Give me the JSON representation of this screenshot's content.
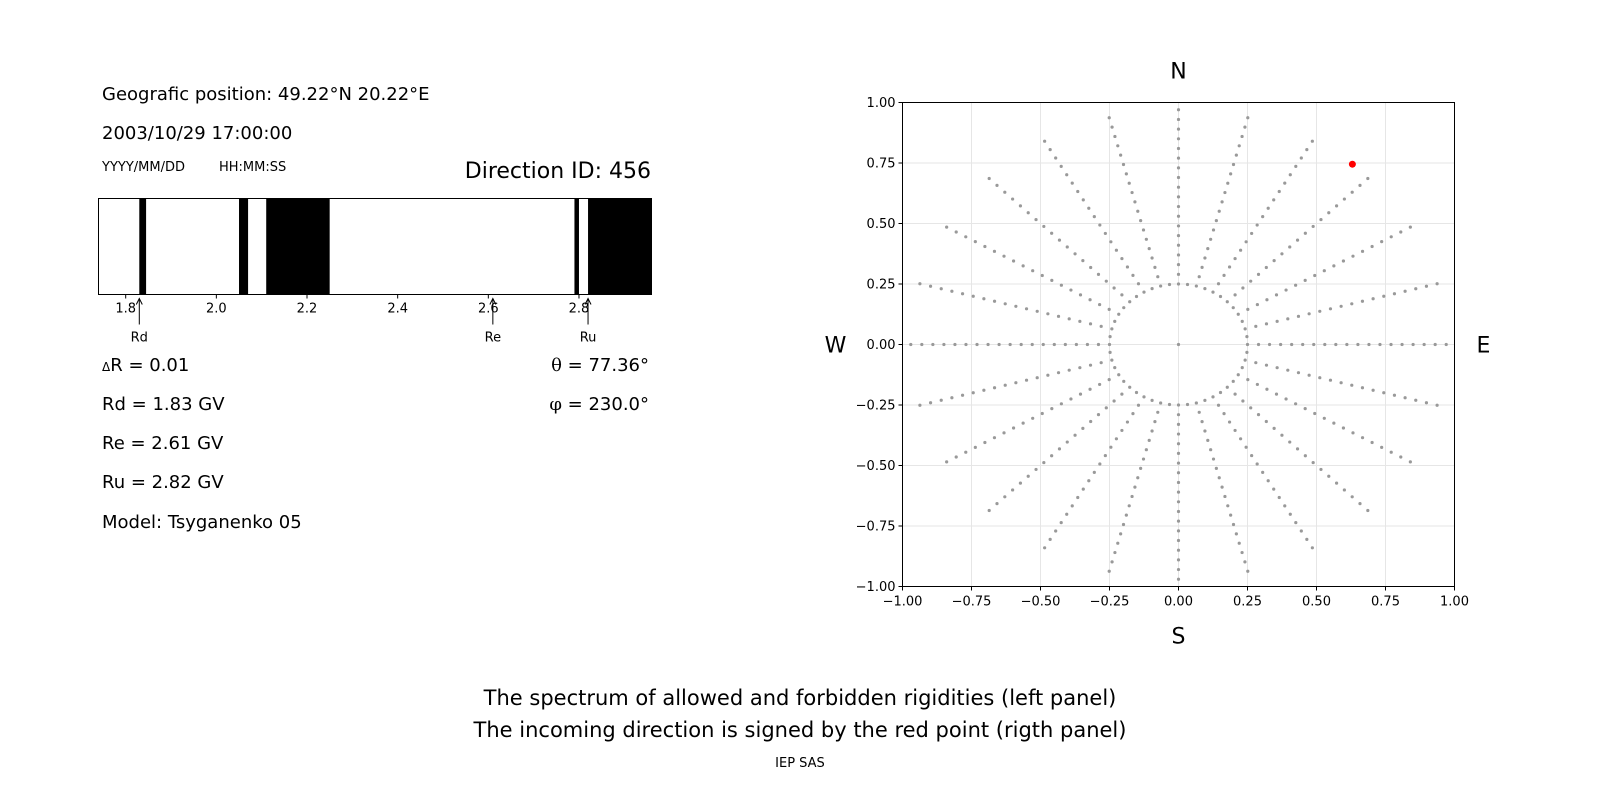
{
  "info": {
    "geo_position": "Geografic position: 49.22°N 20.22°E",
    "datetime": "2003/10/29 17:00:00",
    "date_format": "YYYY/MM/DD",
    "time_format": "HH:MM:SS",
    "direction_id": "Direction ID: 456"
  },
  "values": {
    "delta_r_symbol": "Δ",
    "delta_r": "R = 0.01",
    "rd": "Rd = 1.83 GV",
    "re": "Re = 2.61 GV",
    "ru": "Ru = 2.82 GV",
    "model": "Model: Tsyganenko 05",
    "theta_symbol": "θ",
    "theta": " = 77.36°",
    "phi_symbol": "φ",
    "phi": " = 230.0°"
  },
  "captions": {
    "line1": "The spectrum of allowed and forbidden rigidities (left panel)",
    "line2": "The incoming direction is signed by the red point (rigth panel)",
    "credit": "IEP SAS"
  },
  "chart_data": [
    {
      "type": "bar",
      "description_key": "rigidity_spectrum",
      "xlim": [
        1.74,
        2.96
      ],
      "xticks": [
        1.8,
        2.0,
        2.2,
        2.4,
        2.6,
        2.8
      ],
      "xtick_labels": [
        "1.8",
        "2.0",
        "2.2",
        "2.4",
        "2.6",
        "2.8"
      ],
      "forbidden_bands": [
        [
          1.83,
          1.845
        ],
        [
          2.05,
          2.07
        ],
        [
          2.11,
          2.25
        ],
        [
          2.79,
          2.8
        ],
        [
          2.82,
          2.96
        ]
      ],
      "markers": [
        {
          "label": "Rd",
          "value": 1.83
        },
        {
          "label": "Re",
          "value": 2.61
        },
        {
          "label": "Ru",
          "value": 2.82
        }
      ],
      "colors": {
        "forbidden": "#000000",
        "allowed": "#ffffff"
      }
    },
    {
      "type": "scatter",
      "description_key": "asymptotic_directions",
      "xlim": [
        -1.0,
        1.0
      ],
      "ylim": [
        -1.0,
        1.0
      ],
      "xticks": [
        -1.0,
        -0.75,
        -0.5,
        -0.25,
        0.0,
        0.25,
        0.5,
        0.75,
        1.0
      ],
      "yticks": [
        -1.0,
        -0.75,
        -0.5,
        -0.25,
        0.0,
        0.25,
        0.5,
        0.75,
        1.0
      ],
      "xtick_labels": [
        "−1.00",
        "−0.75",
        "−0.50",
        "−0.25",
        "0.00",
        "0.25",
        "0.50",
        "0.75",
        "1.00"
      ],
      "ytick_labels": [
        "−1.00",
        "−0.75",
        "−0.50",
        "−0.25",
        "0.00",
        "0.25",
        "0.50",
        "0.75",
        "1.00"
      ],
      "grid": true,
      "compass": {
        "north": "N",
        "south": "S",
        "east": "E",
        "west": "W"
      },
      "grid_points": {
        "azimuth_step_deg": 15,
        "inner_ring_radius": 0.25,
        "inner_ring_step_deg": 7.5,
        "radial_rays": [
          {
            "from_radius": 0.25,
            "to_radius": 1.0,
            "step": 0.04
          }
        ]
      },
      "highlight_point": {
        "x": 0.63,
        "y": 0.745
      },
      "colors": {
        "grid_point": "#999999",
        "highlight": "#ff0000"
      }
    }
  ]
}
